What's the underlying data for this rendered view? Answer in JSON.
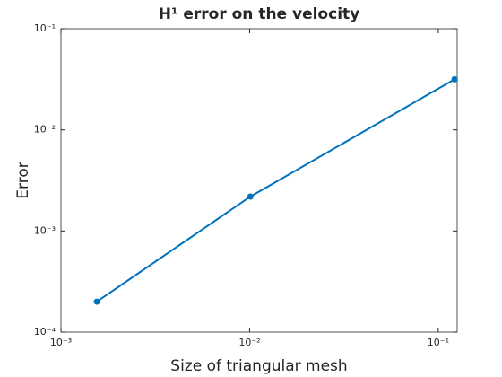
{
  "chart_data": {
    "type": "line",
    "title": "H¹ error on the velocity",
    "x_label": "Size of triangular mesh",
    "y_label": "Error",
    "x_scale": "log",
    "y_scale": "log",
    "xlim": [
      0.001,
      0.126
    ],
    "ylim": [
      0.0001,
      0.1
    ],
    "xticks": [
      {
        "value": 0.001,
        "label": "10⁻³"
      },
      {
        "value": 0.01,
        "label": "10⁻²"
      },
      {
        "value": 0.1,
        "label": "10⁻¹"
      }
    ],
    "yticks": [
      {
        "value": 0.0001,
        "label": "10⁻⁴"
      },
      {
        "value": 0.001,
        "label": "10⁻³"
      },
      {
        "value": 0.01,
        "label": "10⁻²"
      },
      {
        "value": 0.1,
        "label": "10⁻¹"
      }
    ],
    "grid": false,
    "series": [
      {
        "name": "H1 error",
        "color": "#0072bd",
        "x": [
          0.00155,
          0.0101,
          0.122
        ],
        "values": [
          0.0002,
          0.00219,
          0.0316
        ]
      }
    ]
  }
}
